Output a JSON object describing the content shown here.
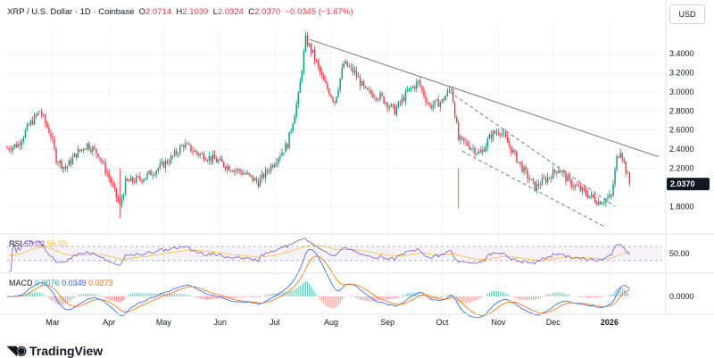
{
  "header": {
    "symbol": "XRP / U.S. Dollar · 1D · Coinbase",
    "open_label": "O",
    "open": "2.0714",
    "high_label": "H",
    "high": "2.1039",
    "low_label": "L",
    "low": "2.0324",
    "close_label": "C",
    "close": "2.0370",
    "change": "−0.0345 (−1.67%)"
  },
  "currency_button": "USD",
  "price_tag": "2.0370",
  "colors": {
    "up": "#089981",
    "down": "#f23645",
    "rsi": "#7e57c2",
    "rsi_ma": "#fbc02d",
    "macd": "#2962ff",
    "signal": "#ff6d00",
    "trend": "#787b86"
  },
  "rsi": {
    "label": "RSI",
    "value": "50.02",
    "ma_value": "55.03",
    "level_label": "50.00"
  },
  "macd": {
    "label": "MACD",
    "hist": "0.0076",
    "macd": "0.0349",
    "signal": "0.0273",
    "zero_label": "0.0000"
  },
  "logo": {
    "text": "TradingView"
  },
  "chart_data": {
    "type": "candlestick",
    "y_axis_ticks": [
      "3.4000",
      "3.2000",
      "3.0000",
      "2.8000",
      "2.6000",
      "2.4000",
      "2.2000",
      "1.8000"
    ],
    "y_tick_values": [
      3.4,
      3.2,
      3.0,
      2.8,
      2.6,
      2.4,
      2.2,
      1.8
    ],
    "x_axis_labels": [
      "Mar",
      "Apr",
      "May",
      "Jun",
      "Jul",
      "Aug",
      "Sep",
      "Oct",
      "Nov",
      "Dec",
      "2026"
    ],
    "x_label_months": [
      "2025-03",
      "2025-04",
      "2025-05",
      "2025-06",
      "2025-07",
      "2025-08",
      "2025-09",
      "2025-10",
      "2025-11",
      "2025-12",
      "2026-01"
    ],
    "ylim": [
      1.55,
      3.7
    ],
    "date_range": [
      "2025-02-04",
      "2026-01-12"
    ],
    "close_path": [
      [
        "2025-02-04",
        2.41
      ],
      [
        "2025-02-10",
        2.45
      ],
      [
        "2025-02-16",
        2.65
      ],
      [
        "2025-02-22",
        2.8
      ],
      [
        "2025-02-28",
        2.55
      ],
      [
        "2025-03-03",
        2.3
      ],
      [
        "2025-03-08",
        2.2
      ],
      [
        "2025-03-14",
        2.35
      ],
      [
        "2025-03-20",
        2.45
      ],
      [
        "2025-03-26",
        2.35
      ],
      [
        "2025-04-01",
        2.1
      ],
      [
        "2025-04-07",
        1.8
      ],
      [
        "2025-04-10",
        2.05
      ],
      [
        "2025-04-20",
        2.1
      ],
      [
        "2025-04-28",
        2.2
      ],
      [
        "2025-05-05",
        2.3
      ],
      [
        "2025-05-12",
        2.45
      ],
      [
        "2025-05-20",
        2.35
      ],
      [
        "2025-05-28",
        2.3
      ],
      [
        "2025-06-05",
        2.22
      ],
      [
        "2025-06-14",
        2.15
      ],
      [
        "2025-06-22",
        2.05
      ],
      [
        "2025-06-30",
        2.25
      ],
      [
        "2025-07-08",
        2.45
      ],
      [
        "2025-07-14",
        2.95
      ],
      [
        "2025-07-18",
        3.55
      ],
      [
        "2025-07-22",
        3.4
      ],
      [
        "2025-07-28",
        3.1
      ],
      [
        "2025-08-03",
        2.9
      ],
      [
        "2025-08-08",
        3.3
      ],
      [
        "2025-08-14",
        3.2
      ],
      [
        "2025-08-20",
        3.0
      ],
      [
        "2025-08-28",
        2.95
      ],
      [
        "2025-09-05",
        2.8
      ],
      [
        "2025-09-12",
        3.0
      ],
      [
        "2025-09-18",
        3.1
      ],
      [
        "2025-09-24",
        2.85
      ],
      [
        "2025-10-01",
        2.9
      ],
      [
        "2025-10-06",
        3.05
      ],
      [
        "2025-10-10",
        2.5
      ],
      [
        "2025-10-15",
        2.45
      ],
      [
        "2025-10-22",
        2.35
      ],
      [
        "2025-10-28",
        2.55
      ],
      [
        "2025-11-02",
        2.6
      ],
      [
        "2025-11-08",
        2.4
      ],
      [
        "2025-11-14",
        2.2
      ],
      [
        "2025-11-21",
        2.0
      ],
      [
        "2025-11-28",
        2.1
      ],
      [
        "2025-12-04",
        2.2
      ],
      [
        "2025-12-10",
        2.05
      ],
      [
        "2025-12-18",
        1.95
      ],
      [
        "2025-12-26",
        1.85
      ],
      [
        "2026-01-02",
        1.9
      ],
      [
        "2026-01-05",
        2.3
      ],
      [
        "2026-01-07",
        2.4
      ],
      [
        "2026-01-12",
        2.037
      ]
    ],
    "trendlines": [
      {
        "from": [
          "2025-07-20",
          3.55
        ],
        "to": [
          "2026-01-28",
          2.32
        ],
        "style": "solid"
      },
      {
        "from": [
          "2025-10-05",
          3.0
        ],
        "to": [
          "2026-01-04",
          1.8
        ],
        "style": "dashed"
      },
      {
        "from": [
          "2025-10-12",
          2.38
        ],
        "to": [
          "2025-12-30",
          1.58
        ],
        "style": "dashed"
      }
    ]
  }
}
